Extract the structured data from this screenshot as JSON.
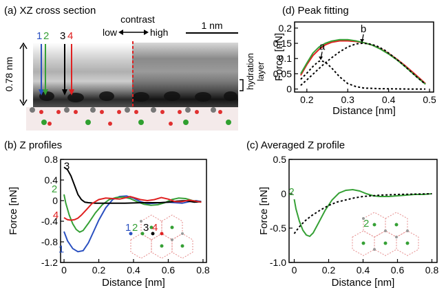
{
  "panels": {
    "a": {
      "title": "(a) XZ cross section",
      "contrast_label": "contrast",
      "contrast_low": "low",
      "contrast_high": "high",
      "scalebar_label": "1 nm",
      "height_label": "0.78 nm",
      "hydration_label_1": "hydration",
      "hydration_label_2": "layer",
      "line_labels": [
        "1",
        "2",
        "3",
        "4"
      ],
      "line_colors": [
        "#2a50c0",
        "#35a035",
        "#000000",
        "#e02020"
      ]
    },
    "b": {
      "title": "(b) Z profiles",
      "inset_labels": [
        "1",
        "2",
        "3",
        "4"
      ]
    },
    "c": {
      "title": "(c) Averaged Z profile",
      "inset_label": "2"
    },
    "d": {
      "title": "(d) Peak fitting"
    }
  },
  "chart_data": [
    {
      "id": "b",
      "type": "line",
      "title": "",
      "xlabel": "Distance [nm]",
      "ylabel": "Force [nN]",
      "xlim": [
        -0.02,
        0.82
      ],
      "ylim": [
        -1.2,
        0.8
      ],
      "xticks": [
        0,
        0.2,
        0.4,
        0.6,
        0.8
      ],
      "xtick_labels": [
        "0",
        "0.2",
        "0.4",
        "0.6",
        "0.8"
      ],
      "yticks": [
        -1.2,
        -0.8,
        -0.4,
        0,
        0.4,
        0.8
      ],
      "ytick_labels": [
        "-1.2",
        "-0.8",
        "-0.4",
        "0",
        "0.4",
        "0.8"
      ],
      "series": [
        {
          "name": "1",
          "color": "#2a50c0",
          "points": [
            [
              0,
              -0.6
            ],
            [
              0.02,
              -0.78
            ],
            [
              0.05,
              -0.93
            ],
            [
              0.08,
              -0.99
            ],
            [
              0.11,
              -0.97
            ],
            [
              0.14,
              -0.82
            ],
            [
              0.17,
              -0.6
            ],
            [
              0.2,
              -0.38
            ],
            [
              0.24,
              -0.14
            ],
            [
              0.28,
              0.02
            ],
            [
              0.32,
              0.08
            ],
            [
              0.36,
              0.09
            ],
            [
              0.4,
              0.05
            ],
            [
              0.44,
              -0.02
            ],
            [
              0.48,
              -0.06
            ],
            [
              0.52,
              -0.05
            ],
            [
              0.56,
              -0.04
            ],
            [
              0.6,
              -0.03
            ],
            [
              0.64,
              -0.04
            ],
            [
              0.68,
              -0.05
            ],
            [
              0.72,
              -0.02
            ],
            [
              0.76,
              0.0
            ],
            [
              0.79,
              -0.02
            ]
          ]
        },
        {
          "name": "2",
          "color": "#35a035",
          "points": [
            [
              0,
              0.12
            ],
            [
              0.01,
              -0.05
            ],
            [
              0.03,
              -0.28
            ],
            [
              0.05,
              -0.45
            ],
            [
              0.07,
              -0.56
            ],
            [
              0.09,
              -0.61
            ],
            [
              0.11,
              -0.58
            ],
            [
              0.14,
              -0.44
            ],
            [
              0.18,
              -0.24
            ],
            [
              0.22,
              -0.08
            ],
            [
              0.26,
              0.02
            ],
            [
              0.3,
              0.06
            ],
            [
              0.34,
              0.07
            ],
            [
              0.38,
              0.04
            ],
            [
              0.42,
              -0.02
            ],
            [
              0.46,
              -0.07
            ],
            [
              0.5,
              -0.09
            ],
            [
              0.54,
              -0.08
            ],
            [
              0.58,
              -0.04
            ],
            [
              0.62,
              0.02
            ],
            [
              0.66,
              0.05
            ],
            [
              0.7,
              0.04
            ],
            [
              0.74,
              0.0
            ],
            [
              0.79,
              -0.03
            ]
          ]
        },
        {
          "name": "3",
          "color": "#000000",
          "points": [
            [
              0,
              0.65
            ],
            [
              0.02,
              0.6
            ],
            [
              0.04,
              0.48
            ],
            [
              0.06,
              0.3
            ],
            [
              0.08,
              0.12
            ],
            [
              0.1,
              0.02
            ],
            [
              0.12,
              -0.03
            ],
            [
              0.14,
              -0.04
            ],
            [
              0.18,
              -0.05
            ],
            [
              0.25,
              -0.05
            ],
            [
              0.35,
              -0.05
            ],
            [
              0.45,
              -0.04
            ],
            [
              0.55,
              -0.04
            ],
            [
              0.6,
              -0.03
            ],
            [
              0.65,
              -0.01
            ],
            [
              0.7,
              0.0
            ],
            [
              0.75,
              -0.03
            ],
            [
              0.79,
              -0.02
            ]
          ]
        },
        {
          "name": "4",
          "color": "#e02020",
          "points": [
            [
              0,
              -0.33
            ],
            [
              0.02,
              -0.37
            ],
            [
              0.04,
              -0.38
            ],
            [
              0.06,
              -0.37
            ],
            [
              0.08,
              -0.34
            ],
            [
              0.1,
              -0.28
            ],
            [
              0.13,
              -0.17
            ],
            [
              0.16,
              -0.06
            ],
            [
              0.2,
              0.02
            ],
            [
              0.24,
              0.05
            ],
            [
              0.28,
              0.04
            ],
            [
              0.32,
              0.03
            ],
            [
              0.36,
              0.06
            ],
            [
              0.38,
              0.08
            ],
            [
              0.4,
              0.06
            ],
            [
              0.44,
              0.02
            ],
            [
              0.48,
              0.0
            ],
            [
              0.52,
              0.02
            ],
            [
              0.56,
              0.06
            ],
            [
              0.6,
              0.03
            ],
            [
              0.64,
              -0.02
            ],
            [
              0.68,
              -0.02
            ],
            [
              0.72,
              0.01
            ],
            [
              0.76,
              -0.01
            ],
            [
              0.79,
              -0.03
            ]
          ]
        }
      ]
    },
    {
      "id": "c",
      "type": "line",
      "title": "",
      "xlabel": "Distance [nm]",
      "ylabel": "Force [nN]",
      "xlim": [
        -0.03,
        0.83
      ],
      "ylim": [
        -1.0,
        0.5
      ],
      "xticks": [
        0,
        0.2,
        0.4,
        0.6,
        0.8
      ],
      "xtick_labels": [
        "0",
        "0.2",
        "0.4",
        "0.6",
        "0.8"
      ],
      "yticks": [
        -1.0,
        -0.5,
        0,
        0.5
      ],
      "ytick_labels": [
        "-1.0",
        "-0.5",
        "0",
        "0.5"
      ],
      "series": [
        {
          "name": "2",
          "color": "#35a035",
          "points": [
            [
              0,
              -0.08
            ],
            [
              0.01,
              -0.22
            ],
            [
              0.03,
              -0.4
            ],
            [
              0.05,
              -0.53
            ],
            [
              0.07,
              -0.6
            ],
            [
              0.09,
              -0.62
            ],
            [
              0.11,
              -0.57
            ],
            [
              0.14,
              -0.43
            ],
            [
              0.18,
              -0.24
            ],
            [
              0.22,
              -0.09
            ],
            [
              0.26,
              0.01
            ],
            [
              0.3,
              0.05
            ],
            [
              0.34,
              0.06
            ],
            [
              0.38,
              0.04
            ],
            [
              0.42,
              0.0
            ],
            [
              0.46,
              -0.03
            ],
            [
              0.5,
              -0.04
            ],
            [
              0.55,
              -0.04
            ],
            [
              0.6,
              -0.03
            ],
            [
              0.65,
              -0.02
            ],
            [
              0.7,
              -0.01
            ],
            [
              0.75,
              -0.01
            ],
            [
              0.8,
              0.0
            ]
          ]
        },
        {
          "name": "",
          "color": "#000000",
          "dashed": true,
          "points": [
            [
              0,
              -0.58
            ],
            [
              0.03,
              -0.48
            ],
            [
              0.06,
              -0.4
            ],
            [
              0.1,
              -0.32
            ],
            [
              0.15,
              -0.24
            ],
            [
              0.2,
              -0.17
            ],
            [
              0.25,
              -0.12
            ],
            [
              0.3,
              -0.09
            ],
            [
              0.35,
              -0.06
            ],
            [
              0.4,
              -0.04
            ],
            [
              0.45,
              -0.03
            ],
            [
              0.5,
              -0.02
            ],
            [
              0.6,
              -0.01
            ],
            [
              0.7,
              -0.005
            ],
            [
              0.8,
              0.0
            ]
          ]
        }
      ]
    },
    {
      "id": "d",
      "type": "line",
      "title": "",
      "xlabel": "Distance [nm]",
      "ylabel": "Force [nN]",
      "xlim": [
        0.17,
        0.51
      ],
      "ylim": [
        -0.01,
        0.22
      ],
      "xticks": [
        0.2,
        0.3,
        0.4,
        0.5
      ],
      "xtick_labels": [
        "0.2",
        "0.3",
        "0.4",
        "0.5"
      ],
      "yticks": [
        0,
        0.05,
        0.1,
        0.15,
        0.2
      ],
      "ytick_labels": [
        "0",
        "0.05",
        "0.1",
        "0.15",
        "0.2"
      ],
      "annotations": [
        {
          "text": "a",
          "x": 0.234,
          "y": 0.093
        },
        {
          "text": "b",
          "x": 0.335,
          "y": 0.15
        }
      ],
      "series": [
        {
          "name": "",
          "color": "#e02020",
          "points": [
            [
              0.185,
              0.045
            ],
            [
              0.2,
              0.08
            ],
            [
              0.215,
              0.11
            ],
            [
              0.23,
              0.13
            ],
            [
              0.245,
              0.145
            ],
            [
              0.26,
              0.153
            ],
            [
              0.28,
              0.158
            ],
            [
              0.3,
              0.158
            ],
            [
              0.32,
              0.156
            ],
            [
              0.34,
              0.152
            ],
            [
              0.36,
              0.144
            ],
            [
              0.38,
              0.132
            ],
            [
              0.4,
              0.117
            ],
            [
              0.42,
              0.098
            ],
            [
              0.44,
              0.077
            ],
            [
              0.46,
              0.054
            ],
            [
              0.48,
              0.03
            ],
            [
              0.49,
              0.018
            ]
          ]
        },
        {
          "name": "",
          "color": "#35a035",
          "points": [
            [
              0.185,
              0.05
            ],
            [
              0.2,
              0.085
            ],
            [
              0.215,
              0.118
            ],
            [
              0.23,
              0.138
            ],
            [
              0.245,
              0.15
            ],
            [
              0.26,
              0.157
            ],
            [
              0.28,
              0.162
            ],
            [
              0.3,
              0.162
            ],
            [
              0.32,
              0.158
            ],
            [
              0.34,
              0.152
            ],
            [
              0.36,
              0.144
            ],
            [
              0.38,
              0.131
            ],
            [
              0.4,
              0.115
            ],
            [
              0.42,
              0.096
            ],
            [
              0.44,
              0.074
            ],
            [
              0.46,
              0.05
            ],
            [
              0.48,
              0.027
            ],
            [
              0.49,
              0.016
            ]
          ]
        },
        {
          "name": "",
          "color": "#000000",
          "dashed": true,
          "points": [
            [
              0.185,
              0.032
            ],
            [
              0.2,
              0.052
            ],
            [
              0.215,
              0.074
            ],
            [
              0.228,
              0.09
            ],
            [
              0.235,
              0.093
            ],
            [
              0.245,
              0.088
            ],
            [
              0.26,
              0.07
            ],
            [
              0.28,
              0.04
            ],
            [
              0.3,
              0.018
            ],
            [
              0.32,
              0.008
            ],
            [
              0.34,
              0.003
            ],
            [
              0.38,
              0.001
            ],
            [
              0.45,
              0.0
            ],
            [
              0.49,
              0.0
            ]
          ]
        },
        {
          "name": "",
          "color": "#000000",
          "dashed": true,
          "points": [
            [
              0.185,
              0.012
            ],
            [
              0.2,
              0.03
            ],
            [
              0.22,
              0.055
            ],
            [
              0.24,
              0.08
            ],
            [
              0.26,
              0.102
            ],
            [
              0.28,
              0.122
            ],
            [
              0.3,
              0.138
            ],
            [
              0.32,
              0.148
            ],
            [
              0.335,
              0.15
            ],
            [
              0.35,
              0.149
            ],
            [
              0.37,
              0.142
            ],
            [
              0.39,
              0.128
            ],
            [
              0.41,
              0.108
            ],
            [
              0.43,
              0.086
            ],
            [
              0.45,
              0.062
            ],
            [
              0.47,
              0.038
            ],
            [
              0.49,
              0.016
            ]
          ]
        }
      ]
    }
  ]
}
